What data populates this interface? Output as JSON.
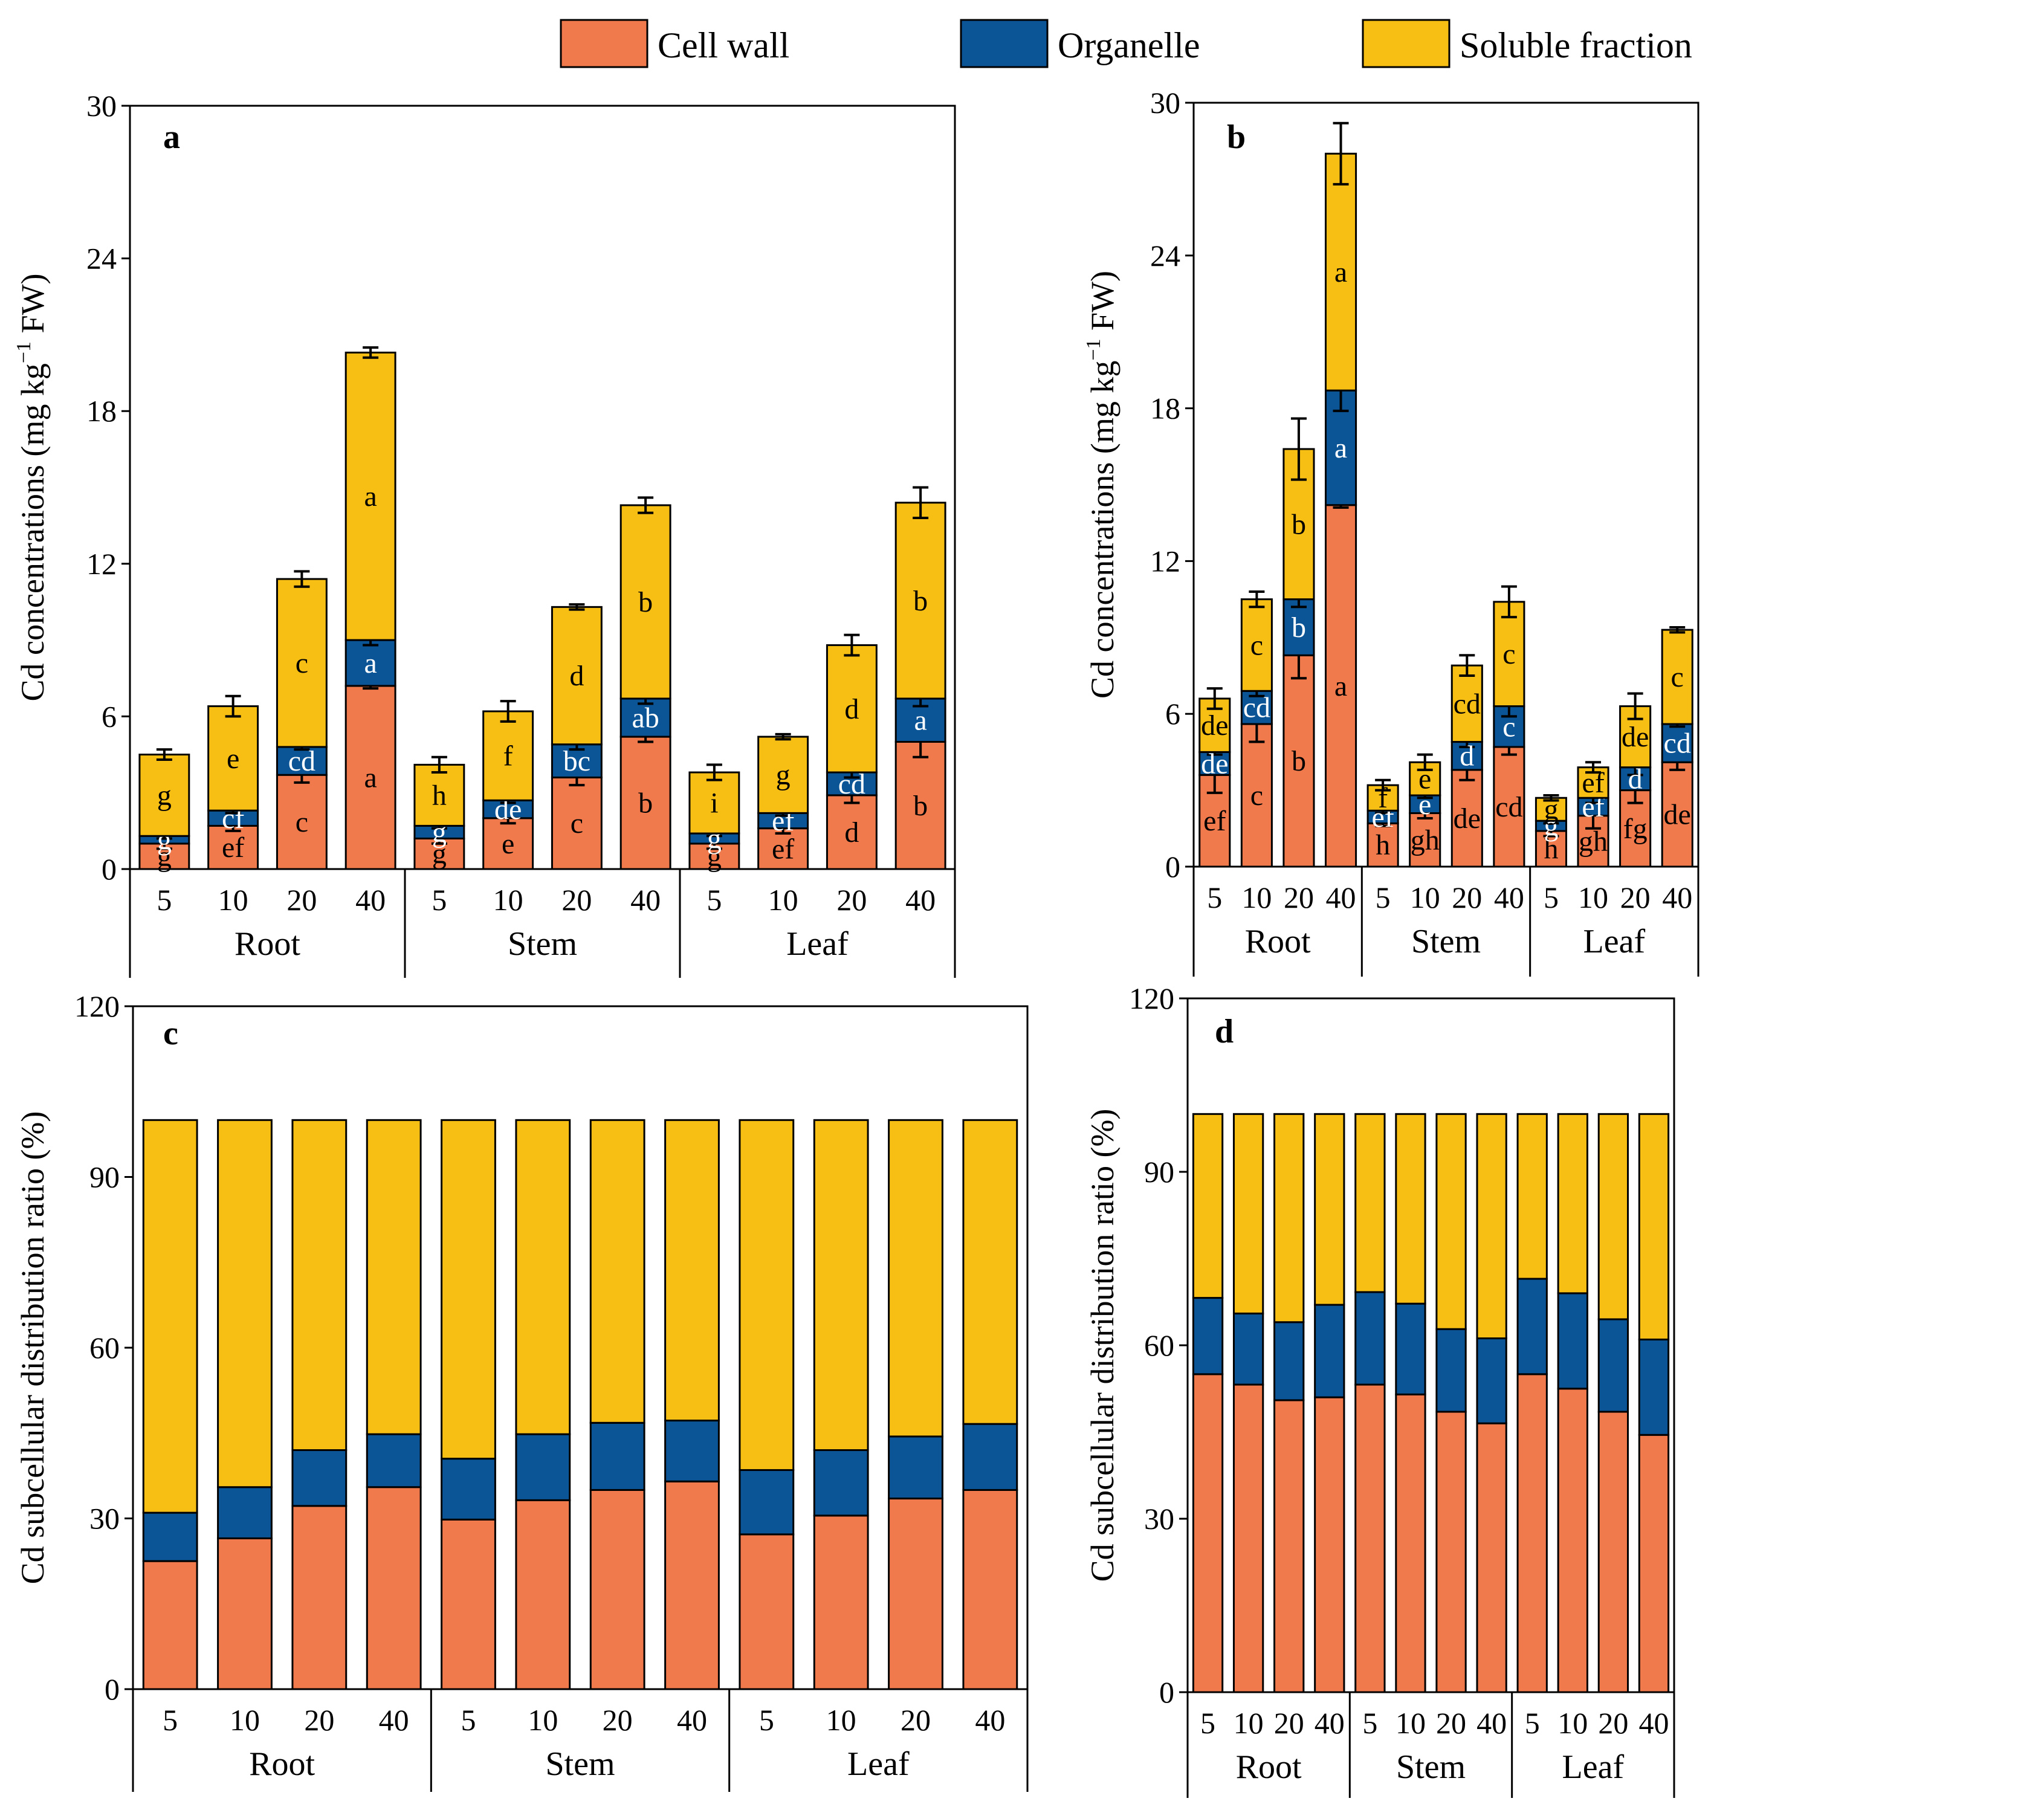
{
  "legend": [
    {
      "name": "Cell wall",
      "color": "#F07A4C"
    },
    {
      "name": "Organelle",
      "color": "#0B5596"
    },
    {
      "name": "Soluble fraction",
      "color": "#F7BF14"
    }
  ],
  "chart_data": [
    {
      "type": "bar",
      "stacked": true,
      "panel": "a",
      "ylabel": "Cd concentrations (mg kg",
      "ylabel_sup": "−1",
      "ylabel_tail": " FW)",
      "ylim": [
        0,
        30
      ],
      "yticks": [
        "0",
        "6",
        "12",
        "18",
        "24",
        "30"
      ],
      "groups": [
        "Root",
        "Stem",
        "Leaf"
      ],
      "categories": [
        "5",
        "10",
        "20",
        "40",
        "5",
        "10",
        "20",
        "40",
        "5",
        "10",
        "20",
        "40"
      ],
      "series": [
        {
          "name": "Cell wall",
          "values": [
            1.0,
            1.7,
            3.7,
            7.2,
            1.2,
            2.0,
            3.6,
            5.2,
            1.0,
            1.6,
            2.9,
            5.0
          ],
          "errors": [
            0.2,
            0.2,
            0.3,
            0.1,
            0.2,
            0.2,
            0.3,
            0.2,
            0.2,
            0.2,
            0.3,
            0.6
          ],
          "letters": [
            "g",
            "ef",
            "c",
            "a",
            "g",
            "e",
            "c",
            "b",
            "g",
            "ef",
            "d",
            "b"
          ]
        },
        {
          "name": "Organelle",
          "values": [
            0.3,
            0.6,
            1.1,
            1.8,
            0.5,
            0.7,
            1.3,
            1.5,
            0.4,
            0.6,
            0.9,
            1.7
          ],
          "errors": [
            0.1,
            0.1,
            0.1,
            0.2,
            0.1,
            0.1,
            0.2,
            0.2,
            0.1,
            0.1,
            0.2,
            0.3
          ],
          "letters": [
            "g",
            "cf",
            "cd",
            "a",
            "g",
            "de",
            "bc",
            "ab",
            "g",
            "ef",
            "cd",
            "a"
          ]
        },
        {
          "name": "Soluble fraction",
          "values": [
            3.2,
            4.1,
            6.6,
            11.3,
            2.4,
            3.5,
            5.4,
            7.6,
            2.4,
            3.0,
            5.0,
            7.7
          ],
          "errors": [
            0.2,
            0.4,
            0.3,
            0.2,
            0.3,
            0.4,
            0.1,
            0.3,
            0.3,
            0.1,
            0.4,
            0.6
          ],
          "letters": [
            "g",
            "e",
            "c",
            "a",
            "h",
            "f",
            "d",
            "b",
            "i",
            "g",
            "d",
            "b"
          ]
        }
      ]
    },
    {
      "type": "bar",
      "stacked": true,
      "panel": "b",
      "ylabel": "Cd concentrations (mg kg",
      "ylabel_sup": "−1",
      "ylabel_tail": " FW)",
      "ylim": [
        0,
        30
      ],
      "yticks": [
        "0",
        "6",
        "12",
        "18",
        "24",
        "30"
      ],
      "groups": [
        "Root",
        "Stem",
        "Leaf"
      ],
      "categories": [
        "5",
        "10",
        "20",
        "40",
        "5",
        "10",
        "20",
        "40",
        "5",
        "10",
        "20",
        "40"
      ],
      "series": [
        {
          "name": "Cell wall",
          "values": [
            3.6,
            5.6,
            8.3,
            14.2,
            1.7,
            2.1,
            3.8,
            4.7,
            1.4,
            2.0,
            3.0,
            4.1
          ],
          "errors": [
            0.7,
            0.7,
            0.9,
            0.1,
            0.1,
            0.2,
            0.4,
            0.3,
            0.2,
            0.5,
            0.5,
            0.3
          ],
          "letters": [
            "ef",
            "c",
            "b",
            "a",
            "h",
            "gh",
            "de",
            "cd",
            "h",
            "gh",
            "fg",
            "de"
          ]
        },
        {
          "name": "Organelle",
          "values": [
            0.9,
            1.3,
            2.2,
            4.5,
            0.5,
            0.7,
            1.1,
            1.6,
            0.4,
            0.7,
            0.9,
            1.5
          ],
          "errors": [
            0.1,
            0.2,
            0.3,
            0.8,
            0.1,
            0.1,
            0.2,
            0.4,
            0.1,
            0.2,
            0.3,
            0.1
          ],
          "letters": [
            "de",
            "cd",
            "b",
            "a",
            "ef",
            "e",
            "d",
            "c",
            "g",
            "ef",
            "d",
            "cd"
          ]
        },
        {
          "name": "Soluble fraction",
          "values": [
            2.1,
            3.6,
            5.9,
            9.3,
            1.0,
            1.3,
            3.0,
            4.1,
            0.9,
            1.2,
            2.4,
            3.7
          ],
          "errors": [
            0.4,
            0.3,
            1.2,
            1.2,
            0.2,
            0.3,
            0.4,
            0.6,
            0.1,
            0.2,
            0.5,
            0.1
          ],
          "letters": [
            "de",
            "c",
            "b",
            "a",
            "f",
            "e",
            "cd",
            "c",
            "g",
            "ef",
            "de",
            "c"
          ]
        }
      ]
    },
    {
      "type": "bar",
      "stacked": true,
      "panel": "c",
      "ylabel": "Cd subcellular distribution ratio (%)",
      "ylim": [
        0,
        120
      ],
      "yticks": [
        "0",
        "30",
        "60",
        "90",
        "120"
      ],
      "groups": [
        "Root",
        "Stem",
        "Leaf"
      ],
      "categories": [
        "5",
        "10",
        "20",
        "40",
        "5",
        "10",
        "20",
        "40",
        "5",
        "10",
        "20",
        "40"
      ],
      "series": [
        {
          "name": "Cell wall",
          "values": [
            22.5,
            26.5,
            32.2,
            35.5,
            29.8,
            33.2,
            35.0,
            36.5,
            27.2,
            30.5,
            33.5,
            35.0
          ]
        },
        {
          "name": "Organelle",
          "values": [
            8.5,
            9.0,
            9.8,
            9.3,
            10.7,
            11.6,
            11.8,
            10.7,
            11.3,
            11.5,
            10.9,
            11.6
          ]
        },
        {
          "name": "Soluble fraction",
          "values": [
            69.0,
            64.5,
            58.0,
            55.2,
            59.5,
            55.2,
            53.2,
            52.8,
            61.5,
            58.0,
            55.6,
            53.4
          ]
        }
      ]
    },
    {
      "type": "bar",
      "stacked": true,
      "panel": "d",
      "ylabel": "Cd subcellular distribution ratio (%)",
      "ylim": [
        0,
        120
      ],
      "yticks": [
        "0",
        "30",
        "60",
        "90",
        "120"
      ],
      "groups": [
        "Root",
        "Stem",
        "Leaf"
      ],
      "categories": [
        "5",
        "10",
        "20",
        "40",
        "5",
        "10",
        "20",
        "40",
        "5",
        "10",
        "20",
        "40"
      ],
      "series": [
        {
          "name": "Cell wall",
          "values": [
            55.0,
            53.2,
            50.5,
            51.0,
            53.2,
            51.5,
            48.5,
            46.5,
            55.0,
            52.5,
            48.5,
            44.5
          ]
        },
        {
          "name": "Organelle",
          "values": [
            13.2,
            12.3,
            13.5,
            16.0,
            16.0,
            15.7,
            14.3,
            14.7,
            16.5,
            16.5,
            16.0,
            16.5
          ]
        },
        {
          "name": "Soluble fraction",
          "values": [
            31.8,
            34.5,
            36.0,
            33.0,
            30.8,
            32.8,
            37.2,
            38.8,
            28.5,
            31.0,
            35.5,
            39.0
          ]
        }
      ]
    }
  ]
}
